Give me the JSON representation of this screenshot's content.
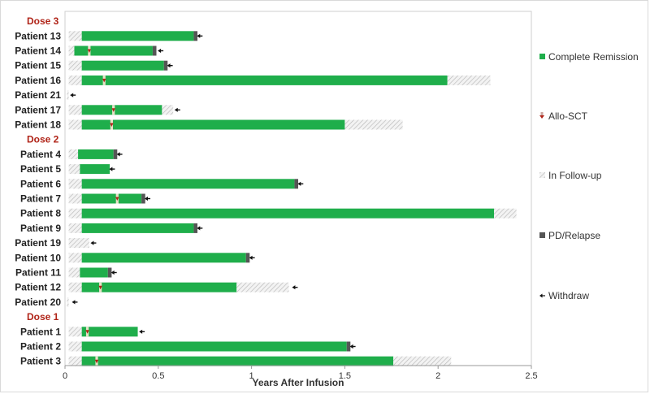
{
  "chart_data": {
    "type": "bar",
    "orientation": "horizontal",
    "xlabel": "Years After Infusion",
    "xlim": [
      0,
      2.5
    ],
    "xticks": [
      "0",
      "0.5",
      "1",
      "1.5",
      "2",
      "2.5"
    ],
    "colors": {
      "complete_remission": "#1fae4b",
      "pd_relapse": "#555555",
      "allo_sct": "#b02418",
      "follow_up_hatch": "#bbbbbb",
      "group_label": "#b02418"
    },
    "legend": {
      "placement": "right",
      "items": [
        {
          "label": "Complete Remission",
          "icon": "green-square"
        },
        {
          "label": "Allo-SCT",
          "icon": "red-down-arrow"
        },
        {
          "label": "In Follow-up",
          "icon": "hatched-square"
        },
        {
          "label": "PD/Relapse",
          "icon": "dark-square"
        },
        {
          "label": "Withdraw",
          "icon": "left-arrow"
        }
      ]
    },
    "groups": [
      {
        "label": "Dose 3",
        "patients": [
          {
            "name": "Patient 13",
            "fu_start": 0.02,
            "cr": [
              0.09,
              0.69
            ],
            "pd": 0.02,
            "sct": null,
            "fu_end": null,
            "withdraw": 0.72
          },
          {
            "name": "Patient 14",
            "fu_start": 0.02,
            "cr": [
              0.05,
              0.47
            ],
            "pd": 0.02,
            "sct": 0.13,
            "fu_end": null,
            "withdraw": 0.51
          },
          {
            "name": "Patient 15",
            "fu_start": 0.02,
            "cr": [
              0.09,
              0.53
            ],
            "pd": 0.02,
            "sct": null,
            "fu_end": null,
            "withdraw": 0.56
          },
          {
            "name": "Patient 16",
            "fu_start": 0.02,
            "cr": [
              0.09,
              2.05
            ],
            "pd": 0,
            "sct": 0.21,
            "fu_end": 2.28,
            "withdraw": null
          },
          {
            "name": "Patient 21",
            "fu_start": 0.01,
            "cr": null,
            "pd": 0,
            "sct": null,
            "fu_end": 0.02,
            "withdraw": 0.04
          },
          {
            "name": "Patient 17",
            "fu_start": 0.02,
            "cr": [
              0.09,
              0.52
            ],
            "pd": 0,
            "sct": 0.26,
            "fu_end": 0.58,
            "withdraw": 0.6
          },
          {
            "name": "Patient 18",
            "fu_start": 0.02,
            "cr": [
              0.09,
              1.5
            ],
            "pd": 0,
            "sct": 0.25,
            "fu_end": 1.81,
            "withdraw": null
          }
        ]
      },
      {
        "label": "Dose 2",
        "patients": [
          {
            "name": "Patient 4",
            "fu_start": 0.02,
            "cr": [
              0.07,
              0.26
            ],
            "pd": 0.02,
            "sct": null,
            "fu_end": null,
            "withdraw": 0.29
          },
          {
            "name": "Patient 5",
            "fu_start": 0.02,
            "cr": [
              0.08,
              0.24
            ],
            "pd": 0,
            "sct": null,
            "fu_end": null,
            "withdraw": 0.25
          },
          {
            "name": "Patient 6",
            "fu_start": 0.02,
            "cr": [
              0.09,
              1.23
            ],
            "pd": 0.02,
            "sct": null,
            "fu_end": null,
            "withdraw": 1.26
          },
          {
            "name": "Patient 7",
            "fu_start": 0.02,
            "cr": [
              0.09,
              0.41
            ],
            "pd": 0.02,
            "sct": 0.28,
            "fu_end": null,
            "withdraw": 0.44
          },
          {
            "name": "Patient 8",
            "fu_start": 0.02,
            "cr": [
              0.09,
              2.3
            ],
            "pd": 0,
            "sct": null,
            "fu_end": 2.42,
            "withdraw": null
          },
          {
            "name": "Patient 9",
            "fu_start": 0.02,
            "cr": [
              0.09,
              0.69
            ],
            "pd": 0.02,
            "sct": null,
            "fu_end": null,
            "withdraw": 0.72
          },
          {
            "name": "Patient 19",
            "fu_start": 0.02,
            "cr": null,
            "pd": 0,
            "sct": null,
            "fu_end": 0.13,
            "withdraw": 0.15
          },
          {
            "name": "Patient 10",
            "fu_start": 0.02,
            "cr": [
              0.09,
              0.97
            ],
            "pd": 0.02,
            "sct": null,
            "fu_end": null,
            "withdraw": 1.0
          },
          {
            "name": "Patient 11",
            "fu_start": 0.02,
            "cr": [
              0.08,
              0.23
            ],
            "pd": 0.02,
            "sct": null,
            "fu_end": null,
            "withdraw": 0.26
          },
          {
            "name": "Patient 12",
            "fu_start": 0.02,
            "cr": [
              0.09,
              0.92
            ],
            "pd": 0,
            "sct": 0.19,
            "fu_end": 1.2,
            "withdraw": 1.23
          },
          {
            "name": "Patient 20",
            "fu_start": 0.01,
            "cr": null,
            "pd": 0,
            "sct": null,
            "fu_end": 0.02,
            "withdraw": 0.05
          }
        ]
      },
      {
        "label": "Dose 1",
        "patients": [
          {
            "name": "Patient 1",
            "fu_start": 0.02,
            "cr": [
              0.09,
              0.39
            ],
            "pd": 0,
            "sct": 0.12,
            "fu_end": null,
            "withdraw": 0.41
          },
          {
            "name": "Patient 2",
            "fu_start": 0.02,
            "cr": [
              0.09,
              1.51
            ],
            "pd": 0.02,
            "sct": null,
            "fu_end": null,
            "withdraw": 1.54
          },
          {
            "name": "Patient 3",
            "fu_start": 0.02,
            "cr": [
              0.09,
              1.76
            ],
            "pd": 0,
            "sct": 0.17,
            "fu_end": 2.07,
            "withdraw": null
          }
        ]
      }
    ]
  }
}
